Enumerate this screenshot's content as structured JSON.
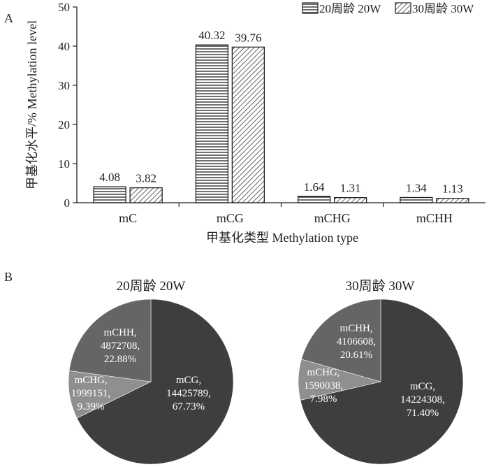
{
  "panels": {
    "a_label": "A",
    "b_label": "B"
  },
  "chart_data": [
    {
      "type": "bar",
      "categories": [
        "mC",
        "mCG",
        "mCHG",
        "mCHH"
      ],
      "series": [
        {
          "name": "20周龄 20W",
          "values": [
            4.08,
            40.32,
            1.64,
            1.34
          ],
          "value_labels": [
            "4.08",
            "40.32",
            "1.64",
            "1.34"
          ],
          "pattern": "horizontal-lines"
        },
        {
          "name": "30周龄 30W",
          "values": [
            3.82,
            39.76,
            1.31,
            1.13
          ],
          "value_labels": [
            "3.82",
            "39.76",
            "1.31",
            "1.13"
          ],
          "pattern": "diagonal-hatch"
        }
      ],
      "xlabel": "甲基化类型 Methylation type",
      "ylabel": "甲基化水平/% Methylation level",
      "ylim": [
        0,
        50
      ],
      "yticks": [
        "0",
        "10",
        "20",
        "30",
        "40",
        "50"
      ],
      "grid": false,
      "legend_position": "top-right"
    },
    {
      "type": "pie",
      "title": "20周龄 20W",
      "slices": [
        {
          "label": "mCG",
          "count": "14425789",
          "percent_label": "67.73%",
          "value": 67.73,
          "color": "#3e3e3e"
        },
        {
          "label": "mCHG",
          "count": "1999151",
          "percent_label": "9.39%",
          "value": 9.39,
          "color": "#8f8f8f"
        },
        {
          "label": "mCHH",
          "count": "4872708",
          "percent_label": "22.88%",
          "value": 22.88,
          "color": "#656565"
        }
      ]
    },
    {
      "type": "pie",
      "title": "30周龄 30W",
      "slices": [
        {
          "label": "mCG",
          "count": "14224308",
          "percent_label": "71.40%",
          "value": 71.4,
          "color": "#3e3e3e"
        },
        {
          "label": "mCHG",
          "count": "1590038",
          "percent_label": "7.98%",
          "value": 7.98,
          "color": "#8f8f8f"
        },
        {
          "label": "mCHH",
          "count": "4106608",
          "percent_label": "20.61%",
          "value": 20.61,
          "color": "#656565"
        }
      ]
    }
  ]
}
